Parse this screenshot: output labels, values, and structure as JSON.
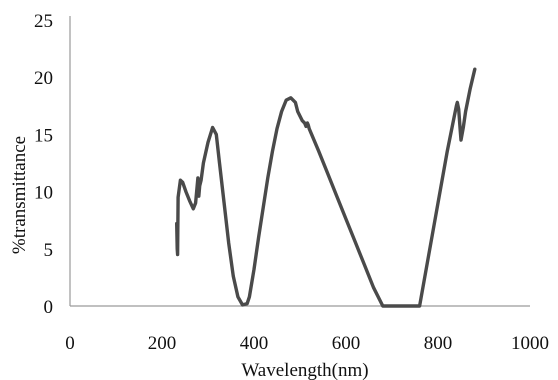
{
  "chart_data": {
    "type": "line",
    "title": "",
    "xlabel": "Wavelength(nm)",
    "ylabel": "%transmittance",
    "xlim": [
      0,
      1000
    ],
    "ylim": [
      0,
      25
    ],
    "xticks": [
      "0",
      "200",
      "400",
      "600",
      "800",
      "1000"
    ],
    "yticks": [
      "0",
      "5",
      "10",
      "15",
      "20",
      "25"
    ],
    "grid": false,
    "legend": "none",
    "series": [
      {
        "color": "#4a4a4a",
        "x": [
          232,
          233,
          234,
          235,
          240,
          245,
          252,
          260,
          268,
          273,
          278,
          280,
          282,
          285,
          290,
          300,
          310,
          318,
          325,
          335,
          345,
          355,
          365,
          375,
          385,
          390,
          400,
          410,
          420,
          430,
          440,
          450,
          460,
          470,
          480,
          490,
          495,
          500,
          505,
          510,
          513,
          516,
          518,
          520,
          540,
          560,
          580,
          600,
          620,
          640,
          660,
          680,
          700,
          760,
          780,
          800,
          820,
          835,
          840,
          842,
          845,
          848,
          850,
          855,
          860,
          870,
          880
        ],
        "y": [
          7.2,
          5.0,
          4.5,
          9.5,
          11.0,
          10.8,
          10.0,
          9.2,
          8.5,
          9.0,
          11.2,
          9.6,
          10.5,
          11.0,
          12.5,
          14.3,
          15.6,
          15.0,
          12.5,
          9.0,
          5.5,
          2.6,
          0.8,
          0.1,
          0.2,
          0.8,
          3.2,
          6.0,
          8.6,
          11.2,
          13.5,
          15.5,
          17.0,
          18.0,
          18.2,
          17.8,
          17.0,
          16.6,
          16.2,
          16.0,
          15.7,
          16.0,
          15.8,
          15.5,
          13.6,
          11.6,
          9.6,
          7.6,
          5.6,
          3.6,
          1.6,
          0.0,
          0.0,
          0.0,
          4.5,
          9.0,
          13.5,
          16.5,
          17.5,
          17.8,
          17.2,
          15.5,
          14.5,
          15.6,
          17.0,
          19.0,
          20.7
        ]
      }
    ]
  }
}
